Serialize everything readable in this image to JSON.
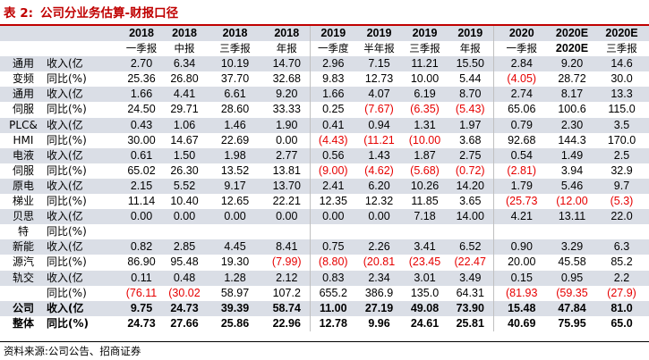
{
  "title": {
    "label": "表 2:",
    "text": "公司分业务估算-财报口径"
  },
  "years": [
    "2018",
    "2018",
    "2018",
    "2018",
    "2019",
    "2019",
    "2019",
    "2019",
    "2020",
    "2020E",
    "2020E"
  ],
  "periods": [
    "一季报",
    "中报",
    "三季报",
    "年报",
    "一季度",
    "半年报",
    "三季报",
    "年报",
    "一季报",
    "2020E",
    "三季报"
  ],
  "rows": [
    {
      "cat": "通用",
      "met": "收入(亿",
      "v": [
        "2.70",
        "6.34",
        "10.19",
        "14.70",
        "2.96",
        "7.15",
        "11.21",
        "15.50",
        "2.84",
        "9.20",
        "14.6"
      ],
      "neg": []
    },
    {
      "cat": "变频",
      "met": "同比(%)",
      "v": [
        "25.36",
        "26.80",
        "37.70",
        "32.68",
        "9.83",
        "12.73",
        "10.00",
        "5.44",
        "(4.05)",
        "28.72",
        "30.0"
      ],
      "neg": [
        8
      ]
    },
    {
      "cat": "通用",
      "met": "收入(亿",
      "v": [
        "1.66",
        "4.41",
        "6.61",
        "9.20",
        "1.66",
        "4.07",
        "6.19",
        "8.70",
        "2.74",
        "8.17",
        "13.3"
      ],
      "neg": []
    },
    {
      "cat": "伺服",
      "met": "同比(%)",
      "v": [
        "24.50",
        "29.71",
        "28.60",
        "33.33",
        "0.25",
        "(7.67)",
        "(6.35)",
        "(5.43)",
        "65.06",
        "100.6",
        "115.0"
      ],
      "neg": [
        5,
        6,
        7
      ]
    },
    {
      "cat": "PLC&",
      "met": "收入(亿",
      "v": [
        "0.43",
        "1.06",
        "1.46",
        "1.90",
        "0.41",
        "0.94",
        "1.31",
        "1.97",
        "0.79",
        "2.30",
        "3.5"
      ],
      "neg": []
    },
    {
      "cat": "HMI",
      "met": "同比(%)",
      "v": [
        "30.00",
        "14.67",
        "22.69",
        "0.00",
        "(4.43)",
        "(11.21",
        "(10.00",
        "3.68",
        "92.68",
        "144.3",
        "170.0"
      ],
      "neg": [
        4,
        5,
        6
      ]
    },
    {
      "cat": "电液",
      "met": "收入(亿",
      "v": [
        "0.61",
        "1.50",
        "1.98",
        "2.77",
        "0.56",
        "1.43",
        "1.87",
        "2.75",
        "0.54",
        "1.49",
        "2.5"
      ],
      "neg": []
    },
    {
      "cat": "伺服",
      "met": "同比(%)",
      "v": [
        "65.02",
        "26.30",
        "13.52",
        "13.81",
        "(9.00)",
        "(4.62)",
        "(5.68)",
        "(0.72)",
        "(2.81)",
        "3.94",
        "32.9"
      ],
      "neg": [
        4,
        5,
        6,
        7,
        8
      ]
    },
    {
      "cat": "原电",
      "met": "收入(亿",
      "v": [
        "2.15",
        "5.52",
        "9.17",
        "13.70",
        "2.41",
        "6.20",
        "10.26",
        "14.20",
        "1.79",
        "5.46",
        "9.7"
      ],
      "neg": []
    },
    {
      "cat": "梯业",
      "met": "同比(%)",
      "v": [
        "11.14",
        "10.40",
        "12.65",
        "22.21",
        "12.35",
        "12.32",
        "11.85",
        "3.65",
        "(25.73",
        "(12.00",
        "(5.3)"
      ],
      "neg": [
        8,
        9,
        10
      ]
    },
    {
      "cat": "贝思",
      "met": "收入(亿",
      "v": [
        "0.00",
        "0.00",
        "0.00",
        "0.00",
        "0.00",
        "0.00",
        "7.18",
        "14.00",
        "4.21",
        "13.11",
        "22.0"
      ],
      "neg": []
    },
    {
      "cat": "特",
      "met": "同比(%)",
      "v": [
        "",
        "",
        "",
        "",
        "",
        "",
        "",
        "",
        "",
        "",
        ""
      ],
      "neg": []
    },
    {
      "cat": "新能",
      "met": "收入(亿",
      "v": [
        "0.82",
        "2.85",
        "4.45",
        "8.41",
        "0.75",
        "2.26",
        "3.41",
        "6.52",
        "0.90",
        "3.29",
        "6.3"
      ],
      "neg": []
    },
    {
      "cat": "源汽",
      "met": "同比(%)",
      "v": [
        "86.90",
        "95.48",
        "19.30",
        "(7.99)",
        "(8.80)",
        "(20.81",
        "(23.45",
        "(22.47",
        "20.00",
        "45.58",
        "85.2"
      ],
      "neg": [
        3,
        4,
        5,
        6,
        7
      ]
    },
    {
      "cat": "轨交",
      "met": "收入(亿",
      "v": [
        "0.11",
        "0.48",
        "1.28",
        "2.12",
        "0.83",
        "2.34",
        "3.01",
        "3.49",
        "0.15",
        "0.95",
        "2.2"
      ],
      "neg": []
    },
    {
      "cat": "",
      "met": "同比(%)",
      "v": [
        "(76.11",
        "(30.02",
        "58.97",
        "107.2",
        "655.2",
        "386.9",
        "135.0",
        "64.31",
        "(81.93",
        "(59.35",
        "(27.9)"
      ],
      "neg": [
        0,
        1,
        8,
        9,
        10
      ]
    },
    {
      "cat": "公司",
      "met": "收入(亿",
      "v": [
        "9.75",
        "24.73",
        "39.39",
        "58.74",
        "11.00",
        "27.19",
        "49.08",
        "73.90",
        "15.48",
        "47.84",
        "81.0"
      ],
      "neg": []
    },
    {
      "cat": "整体",
      "met": "同比(%)",
      "v": [
        "24.73",
        "27.66",
        "25.86",
        "22.96",
        "12.78",
        "9.96",
        "24.61",
        "25.81",
        "40.69",
        "75.95",
        "65.0"
      ],
      "neg": []
    }
  ],
  "source": "资料来源:公司公告、招商证券"
}
